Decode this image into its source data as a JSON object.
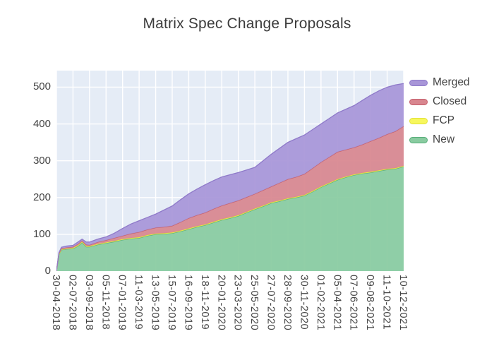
{
  "title": "Matrix Spec Change Proposals",
  "chart_data": {
    "type": "area",
    "stacked": true,
    "title": "Matrix Spec Change Proposals",
    "plot_bg": "#e5ecf6",
    "grid_color": "#ffffff",
    "grid": true,
    "legend_position": "right",
    "legend": [
      "Merged",
      "Closed",
      "FCP",
      "New"
    ],
    "x_tick_labels": [
      "30-04-2018",
      "02-07-2018",
      "03-09-2018",
      "05-11-2018",
      "07-01-2019",
      "11-03-2019",
      "13-05-2019",
      "15-07-2019",
      "16-09-2019",
      "18-11-2019",
      "20-01-2020",
      "23-03-2020",
      "25-05-2020",
      "27-07-2020",
      "28-09-2020",
      "30-11-2020",
      "01-02-2021",
      "05-04-2021",
      "07-06-2021",
      "09-08-2021",
      "11-10-2021",
      "10-12-2021"
    ],
    "y_ticks": [
      0,
      100,
      200,
      300,
      400,
      500
    ],
    "ylim": [
      0,
      545
    ],
    "x": [
      0,
      0.15,
      0.3,
      0.6,
      1,
      1.3,
      1.55,
      1.8,
      2,
      2.5,
      3,
      3.5,
      4,
      4.5,
      5,
      5.5,
      6,
      6.5,
      7,
      7.5,
      8,
      8.5,
      9,
      9.5,
      10,
      10.5,
      11,
      11.5,
      12,
      12.5,
      13,
      13.5,
      14,
      14.5,
      15,
      15.5,
      16,
      16.5,
      17,
      17.5,
      18,
      18.5,
      19,
      19.5,
      20,
      20.5,
      21
    ],
    "series": [
      {
        "name": "New",
        "fill": "#89cba0",
        "line": "#57ad79",
        "values": [
          0,
          45,
          58,
          60,
          61,
          68,
          78,
          66,
          66,
          72,
          76,
          80,
          85,
          88,
          90,
          96,
          100,
          101,
          103,
          108,
          114,
          120,
          125,
          132,
          139,
          144,
          150,
          159,
          168,
          176,
          185,
          190,
          196,
          200,
          205,
          216,
          228,
          238,
          248,
          255,
          261,
          265,
          268,
          272,
          276,
          278,
          284
        ]
      },
      {
        "name": "FCP",
        "fill": "#f7f75d",
        "line": "#e3e339",
        "values": [
          0,
          1,
          1,
          1,
          2,
          2,
          2,
          2,
          2,
          2,
          2,
          2,
          2,
          2,
          2,
          2,
          2,
          2,
          2,
          2,
          2,
          2,
          2,
          2,
          2,
          2,
          2,
          2,
          2,
          2,
          2,
          2,
          2,
          2,
          2,
          2,
          2,
          2,
          2,
          2,
          2,
          2,
          2,
          2,
          2,
          2,
          2
        ]
      },
      {
        "name": "Closed",
        "fill": "#d8868f",
        "line": "#c55f6b",
        "values": [
          0,
          2,
          3,
          3,
          3,
          4,
          3,
          4,
          3,
          5,
          6,
          8,
          9,
          12,
          14,
          15,
          16,
          17,
          18,
          23,
          28,
          30,
          32,
          35,
          37,
          39,
          40,
          40,
          40,
          42,
          43,
          48,
          52,
          54,
          57,
          62,
          66,
          70,
          74,
          73,
          73,
          77,
          83,
          88,
          94,
          100,
          108
        ]
      },
      {
        "name": "Merged",
        "fill": "#a896d8",
        "line": "#8f7ac9",
        "values": [
          0,
          2,
          3,
          4,
          4,
          5,
          4,
          7,
          8,
          8,
          9,
          13,
          20,
          26,
          31,
          33,
          37,
          46,
          54,
          61,
          66,
          71,
          76,
          77,
          78,
          77,
          76,
          74,
          72,
          80,
          88,
          94,
          100,
          104,
          106,
          105,
          104,
          105,
          106,
          110,
          114,
          120,
          125,
          128,
          128,
          126,
          116
        ]
      }
    ]
  }
}
